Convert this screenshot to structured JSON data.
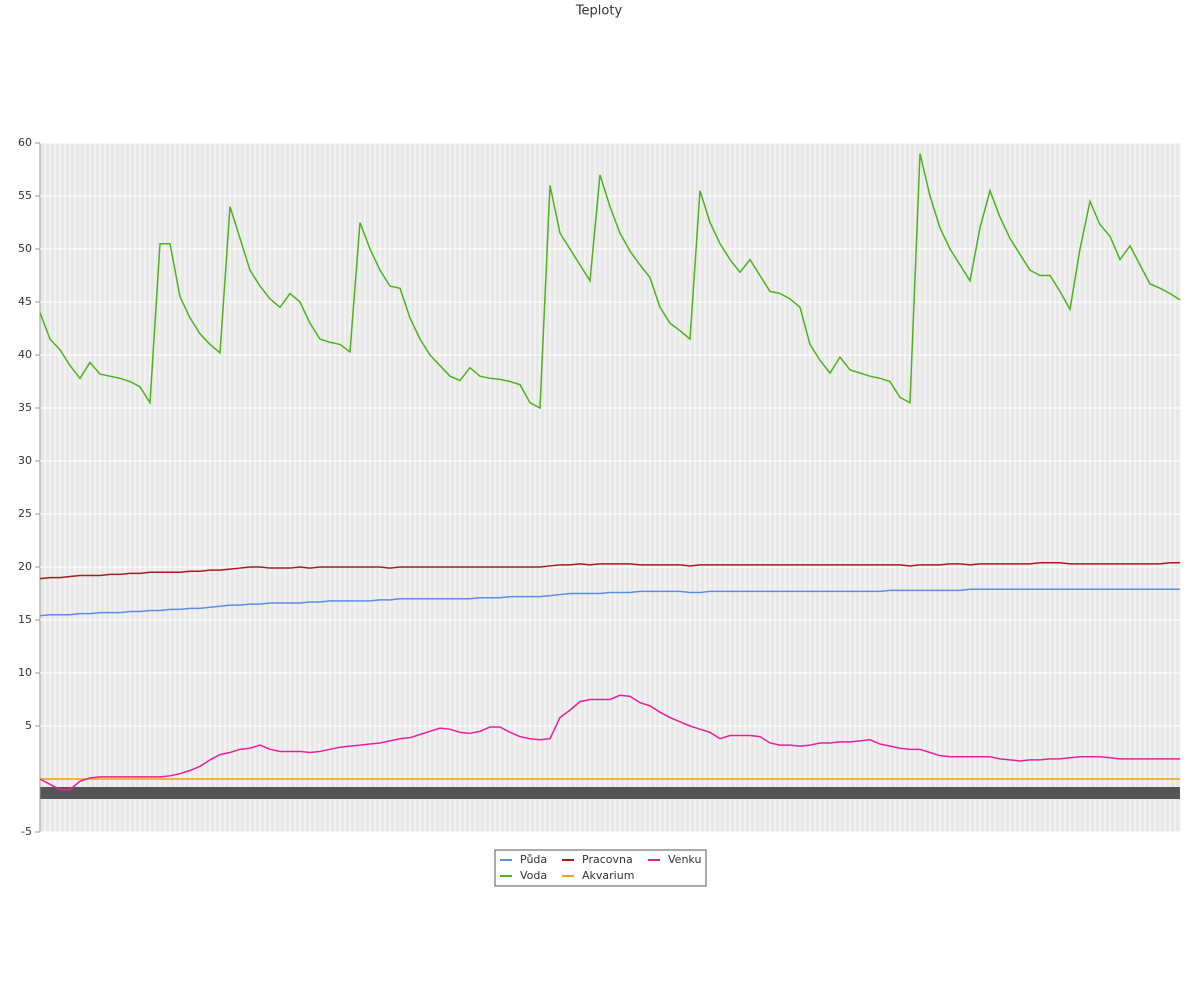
{
  "chart_data": {
    "type": "line",
    "title": "Teploty",
    "ylim": [
      -5,
      60
    ],
    "yticks": [
      -5,
      5,
      10,
      15,
      20,
      25,
      30,
      35,
      40,
      45,
      50,
      55,
      60
    ],
    "grid": true,
    "legend": "bottom",
    "series": [
      {
        "name": "Půda",
        "color": "#5b8ee6",
        "values": [
          15.4,
          15.5,
          15.5,
          15.5,
          15.6,
          15.6,
          15.7,
          15.7,
          15.7,
          15.8,
          15.8,
          15.9,
          15.9,
          16,
          16,
          16.1,
          16.1,
          16.2,
          16.3,
          16.4,
          16.4,
          16.5,
          16.5,
          16.6,
          16.6,
          16.6,
          16.6,
          16.7,
          16.7,
          16.8,
          16.8,
          16.8,
          16.8,
          16.8,
          16.9,
          16.9,
          17,
          17,
          17,
          17,
          17,
          17,
          17,
          17,
          17.1,
          17.1,
          17.1,
          17.2,
          17.2,
          17.2,
          17.2,
          17.3,
          17.4,
          17.5,
          17.5,
          17.5,
          17.5,
          17.6,
          17.6,
          17.6,
          17.7,
          17.7,
          17.7,
          17.7,
          17.7,
          17.6,
          17.6,
          17.7,
          17.7,
          17.7,
          17.7,
          17.7,
          17.7,
          17.7,
          17.7,
          17.7,
          17.7,
          17.7,
          17.7,
          17.7,
          17.7,
          17.7,
          17.7,
          17.7,
          17.7,
          17.8,
          17.8,
          17.8,
          17.8,
          17.8,
          17.8,
          17.8,
          17.8,
          17.9,
          17.9,
          17.9,
          17.9,
          17.9,
          17.9,
          17.9,
          17.9,
          17.9,
          17.9,
          17.9,
          17.9,
          17.9,
          17.9,
          17.9,
          17.9,
          17.9,
          17.9,
          17.9,
          17.9,
          17.9,
          17.9
        ]
      },
      {
        "name": "Voda",
        "color": "#4db31a",
        "values": [
          44,
          41.5,
          40.5,
          39,
          37.8,
          39.3,
          38.2,
          38,
          37.8,
          37.5,
          37,
          35.5,
          50.5,
          50.5,
          45.5,
          43.5,
          42,
          41,
          40.2,
          54,
          51,
          48,
          46.5,
          45.3,
          44.5,
          45.8,
          45,
          43,
          41.5,
          41.2,
          41,
          40.3,
          52.5,
          50,
          48,
          46.5,
          46.3,
          43.5,
          41.5,
          40,
          39,
          38,
          37.6,
          38.8,
          38,
          37.8,
          37.7,
          37.5,
          37.2,
          35.5,
          35,
          56,
          51.5,
          50,
          48.5,
          47,
          57,
          54,
          51.5,
          49.8,
          48.5,
          47.3,
          44.5,
          43,
          42.3,
          41.5,
          55.5,
          52.5,
          50.5,
          49,
          47.8,
          49,
          47.5,
          46,
          45.8,
          45.3,
          44.5,
          41,
          39.5,
          38.3,
          39.8,
          38.6,
          38.3,
          38,
          37.8,
          37.5,
          36,
          35.5,
          59,
          55,
          52,
          50,
          48.5,
          47,
          52,
          55.5,
          53,
          51,
          49.5,
          48,
          47.5,
          47.5,
          46,
          44.3,
          50,
          54.5,
          52.3,
          51.2,
          49,
          50.3,
          48.5,
          46.7,
          46.3,
          45.8,
          45.2
        ]
      },
      {
        "name": "Pracovna",
        "color": "#a61c1c",
        "values": [
          18.9,
          19,
          19,
          19.1,
          19.2,
          19.2,
          19.2,
          19.3,
          19.3,
          19.4,
          19.4,
          19.5,
          19.5,
          19.5,
          19.5,
          19.6,
          19.6,
          19.7,
          19.7,
          19.8,
          19.9,
          20,
          20,
          19.9,
          19.9,
          19.9,
          20,
          19.9,
          20,
          20,
          20,
          20,
          20,
          20,
          20,
          19.9,
          20,
          20,
          20,
          20,
          20,
          20,
          20,
          20,
          20,
          20,
          20,
          20,
          20,
          20,
          20,
          20.1,
          20.2,
          20.2,
          20.3,
          20.2,
          20.3,
          20.3,
          20.3,
          20.3,
          20.2,
          20.2,
          20.2,
          20.2,
          20.2,
          20.1,
          20.2,
          20.2,
          20.2,
          20.2,
          20.2,
          20.2,
          20.2,
          20.2,
          20.2,
          20.2,
          20.2,
          20.2,
          20.2,
          20.2,
          20.2,
          20.2,
          20.2,
          20.2,
          20.2,
          20.2,
          20.2,
          20.1,
          20.2,
          20.2,
          20.2,
          20.3,
          20.3,
          20.2,
          20.3,
          20.3,
          20.3,
          20.3,
          20.3,
          20.3,
          20.4,
          20.4,
          20.4,
          20.3,
          20.3,
          20.3,
          20.3,
          20.3,
          20.3,
          20.3,
          20.3,
          20.3,
          20.3,
          20.4,
          20.4
        ]
      },
      {
        "name": "Akvarium",
        "color": "#f0a30a",
        "values": [
          0,
          0,
          0,
          0,
          0,
          0,
          0,
          0,
          0,
          0,
          0,
          0,
          0,
          0,
          0,
          0,
          0,
          0,
          0,
          0,
          0,
          0,
          0,
          0,
          0,
          0,
          0,
          0,
          0,
          0,
          0,
          0,
          0,
          0,
          0,
          0,
          0,
          0,
          0,
          0,
          0,
          0,
          0,
          0,
          0,
          0,
          0,
          0,
          0,
          0,
          0,
          0,
          0,
          0,
          0,
          0,
          0,
          0,
          0,
          0,
          0,
          0,
          0,
          0,
          0,
          0,
          0,
          0,
          0,
          0,
          0,
          0,
          0,
          0,
          0,
          0,
          0,
          0,
          0,
          0,
          0,
          0,
          0,
          0,
          0,
          0,
          0,
          0,
          0,
          0,
          0,
          0,
          0,
          0,
          0,
          0,
          0,
          0,
          0,
          0,
          0,
          0,
          0,
          0,
          0,
          0,
          0,
          0,
          0,
          0,
          0,
          0,
          0,
          0,
          0
        ]
      },
      {
        "name": "Venku",
        "color": "#e6209a",
        "values": [
          0,
          -0.5,
          -1,
          -1,
          -0.2,
          0.1,
          0.2,
          0.2,
          0.2,
          0.2,
          0.2,
          0.2,
          0.2,
          0.3,
          0.5,
          0.8,
          1.2,
          1.8,
          2.3,
          2.5,
          2.8,
          2.9,
          3.2,
          2.8,
          2.6,
          2.6,
          2.6,
          2.5,
          2.6,
          2.8,
          3.0,
          3.1,
          3.2,
          3.3,
          3.4,
          3.6,
          3.8,
          3.9,
          4.2,
          4.5,
          4.8,
          4.7,
          4.4,
          4.3,
          4.5,
          4.9,
          4.9,
          4.4,
          4.0,
          3.8,
          3.7,
          3.8,
          5.8,
          6.5,
          7.3,
          7.5,
          7.5,
          7.5,
          7.9,
          7.8,
          7.2,
          6.9,
          6.3,
          5.8,
          5.4,
          5.0,
          4.7,
          4.4,
          3.8,
          4.1,
          4.1,
          4.1,
          4.0,
          3.4,
          3.2,
          3.2,
          3.1,
          3.2,
          3.4,
          3.4,
          3.5,
          3.5,
          3.6,
          3.7,
          3.3,
          3.1,
          2.9,
          2.8,
          2.8,
          2.5,
          2.2,
          2.1,
          2.1,
          2.1,
          2.1,
          2.1,
          1.9,
          1.8,
          1.7,
          1.8,
          1.8,
          1.9,
          1.9,
          2.0,
          2.1,
          2.1,
          2.1,
          2.0,
          1.9,
          1.9,
          1.9,
          1.9,
          1.9,
          1.9,
          1.9
        ]
      }
    ]
  }
}
